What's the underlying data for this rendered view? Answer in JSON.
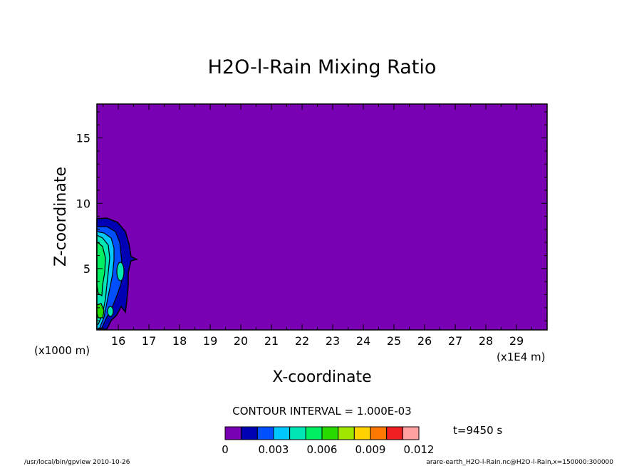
{
  "chart_data": {
    "type": "contour",
    "title": "H2O-l-Rain Mixing Ratio",
    "xlabel": "X-coordinate",
    "ylabel": "Z-coordinate",
    "x_unit_left": "(x1000 m)",
    "x_unit_right": "(x1E4 m)",
    "xlim": [
      15.3,
      30.0
    ],
    "ylim": [
      0.3,
      17.6
    ],
    "x_ticks": [
      "16",
      "17",
      "18",
      "19",
      "20",
      "21",
      "22",
      "23",
      "24",
      "25",
      "26",
      "27",
      "28",
      "29"
    ],
    "y_ticks": [
      "5",
      "10",
      "15"
    ],
    "background_color": "#7a00b4",
    "contour_interval_label": "CONTOUR INTERVAL = 1.000E-03",
    "time_label": "t=9450 s",
    "colorbar": {
      "levels": [
        0,
        0.001,
        0.002,
        0.003,
        0.004,
        0.005,
        0.006,
        0.007,
        0.008,
        0.009,
        0.01,
        0.011,
        0.012
      ],
      "colors": [
        "#7a00b4",
        "#0000b4",
        "#0050ff",
        "#00c8ff",
        "#00e6b4",
        "#00f064",
        "#28dc00",
        "#a0e600",
        "#ffd200",
        "#ff7800",
        "#f01e1e",
        "#ffa0a0"
      ],
      "tick_labels": [
        {
          "level": 0,
          "text": "0"
        },
        {
          "level": 0.003,
          "text": "0.003"
        },
        {
          "level": 0.006,
          "text": "0.006"
        },
        {
          "level": 0.009,
          "text": "0.009"
        },
        {
          "level": 0.012,
          "text": "0.012"
        }
      ]
    },
    "grid": false,
    "legend": "colorbar-bottom"
  },
  "footer": {
    "left": "/usr/local/bin/gpview  2010-10-26",
    "right": "arare-earth_H2O-l-Rain.nc@H2O-l-Rain,x=150000:300000"
  }
}
